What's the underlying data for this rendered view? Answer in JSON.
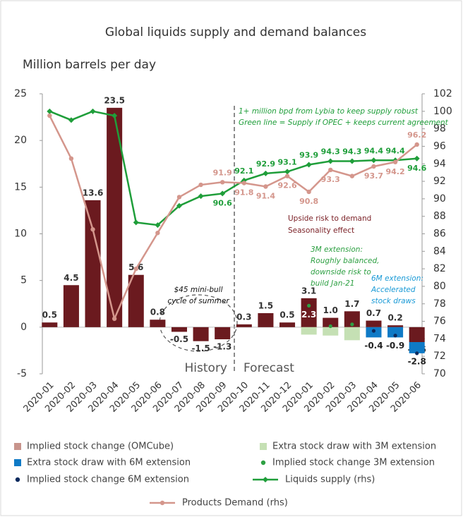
{
  "chart_data": {
    "type": "combo",
    "title": "Global liquids supply and demand balances",
    "y_label": "Million barrels per day",
    "categories": [
      "2020-01",
      "2020-02",
      "2020-03",
      "2020-04",
      "2020-05",
      "2020-06",
      "2020-07",
      "2020-08",
      "2020-09",
      "2020-10",
      "2020-11",
      "2020-12",
      "2020-01",
      "2020-02",
      "2020-03",
      "2020-04",
      "2020-05",
      "2020-06"
    ],
    "ylim": [
      -5,
      25
    ],
    "yticks": [
      -5,
      0,
      5,
      10,
      15,
      20,
      25
    ],
    "y2lim": [
      70,
      102
    ],
    "y2ticks": [
      70,
      72,
      74,
      76,
      78,
      80,
      82,
      84,
      86,
      88,
      90,
      92,
      94,
      96,
      98,
      100,
      102
    ],
    "series": [
      {
        "name": "Implied stock change (OMCube)",
        "type": "bar",
        "color": "#6b1a1f",
        "values": [
          0.5,
          4.5,
          13.6,
          23.5,
          5.6,
          0.8,
          -0.5,
          -1.5,
          -1.3,
          0.3,
          1.5,
          0.5,
          3.1,
          1.0,
          1.7,
          0.7,
          0.2,
          -1.6
        ],
        "value_labels": [
          "0.5",
          "4.5",
          "13.6",
          "23.5",
          "5.6",
          "0.8",
          "-0.5",
          "-1.5",
          "-1.3",
          "0.3",
          "1.5",
          "0.5",
          "3.1",
          "1.0",
          "1.7",
          "0.7",
          "0.2",
          "-1.6"
        ]
      },
      {
        "name": "Extra stock draw with 3M extension",
        "type": "bar",
        "color": "#c5e0b4",
        "values": [
          null,
          null,
          null,
          null,
          null,
          null,
          null,
          null,
          null,
          null,
          null,
          null,
          -0.8,
          -0.9,
          -1.4,
          null,
          null,
          null
        ]
      },
      {
        "name": "Extra stock draw with 6M extension",
        "type": "bar",
        "color": "#0f7ac6",
        "values": [
          null,
          null,
          null,
          null,
          null,
          null,
          null,
          null,
          null,
          null,
          null,
          null,
          null,
          null,
          null,
          -1.1,
          -1.1,
          -1.2
        ]
      },
      {
        "name": "Implied stock change 3M extension",
        "type": "scatter",
        "color": "#2ea043",
        "values": [
          null,
          null,
          null,
          null,
          null,
          null,
          null,
          null,
          null,
          null,
          null,
          null,
          2.3,
          0.1,
          0.3,
          null,
          null,
          null
        ],
        "value_labels": [
          null,
          null,
          null,
          null,
          null,
          null,
          null,
          null,
          null,
          null,
          null,
          null,
          "2.3",
          null,
          null,
          null,
          null,
          null
        ]
      },
      {
        "name": "Implied stock change 6M extension",
        "type": "scatter",
        "color": "#0b2a5e",
        "values": [
          null,
          null,
          null,
          null,
          null,
          null,
          null,
          null,
          null,
          null,
          null,
          null,
          null,
          null,
          null,
          -0.4,
          -0.9,
          -2.8
        ],
        "value_labels": [
          null,
          null,
          null,
          null,
          null,
          null,
          null,
          null,
          null,
          null,
          null,
          null,
          null,
          null,
          null,
          "-0.4",
          "-0.9",
          "-2.8"
        ]
      },
      {
        "name": "Liquids supply (rhs)",
        "type": "line",
        "axis": "y2",
        "marker": "diamond",
        "color": "#1f9e3a",
        "values": [
          100,
          99.0,
          100,
          99.5,
          87.3,
          87.0,
          89.2,
          90.3,
          90.6,
          92.1,
          92.9,
          93.1,
          93.9,
          94.3,
          94.3,
          94.4,
          94.4,
          94.6
        ],
        "value_labels": [
          null,
          null,
          null,
          null,
          null,
          null,
          null,
          null,
          "90.6",
          "92.1",
          "92.9",
          "93.1",
          "93.9",
          "94.3",
          "94.3",
          "94.4",
          "94.4",
          "94.6"
        ]
      },
      {
        "name": "Products Demand (rhs)",
        "type": "line",
        "axis": "y2",
        "marker": "circle",
        "color": "#d4968c",
        "values": [
          99.5,
          94.6,
          86.5,
          76.3,
          82.0,
          86.1,
          90.2,
          91.6,
          91.9,
          91.8,
          91.4,
          92.6,
          90.8,
          93.3,
          92.6,
          93.7,
          94.2,
          96.2
        ],
        "value_labels": [
          null,
          null,
          null,
          null,
          null,
          null,
          null,
          null,
          "91.9",
          "91.8",
          "91.4",
          "92.6",
          "90.8",
          "93.3",
          null,
          "93.7",
          "94.2",
          "96.2"
        ]
      }
    ],
    "annotations": [
      "1+ million bpd from Lybia to keep supply robust",
      "Green line = Supply if OPEC + keeps current agreement",
      "Upside risk to demand",
      "Seasonality effect",
      "3M extension:",
      "Roughly balanced,",
      "downside risk to",
      "build Jan-21",
      "6M extension:",
      "Accelerated",
      "stock draws",
      "$45 mini-bull",
      "cycle of summer",
      "History",
      "Forecast"
    ]
  }
}
